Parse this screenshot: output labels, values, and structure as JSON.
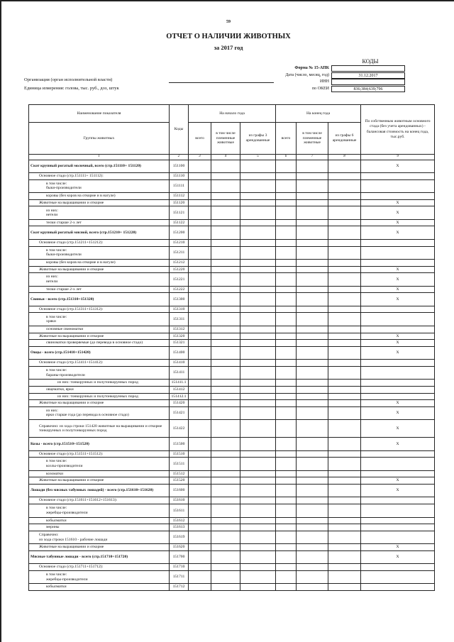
{
  "page_number": "59",
  "title": "ОТЧЕТ О НАЛИЧИИ ЖИВОТНЫХ",
  "subtitle": "за 2017 год",
  "codes_block": {
    "heading": "КОДЫ",
    "rows": [
      {
        "label": "Форма № 15-АПК",
        "value": ""
      },
      {
        "label": "Дата (число, месяц, год)",
        "value": "31.12.2017"
      },
      {
        "label": "ИНН",
        "value": ""
      },
      {
        "label": "по ОКЕИ",
        "value": "836;384;639;796"
      }
    ]
  },
  "organization_label": "Организация (орган исполнительной власти)",
  "unit_label": "Единица измерения: голова, тыс. руб., доз, штук",
  "table": {
    "h_name": "Наименование показателя",
    "h_group": "Группы животных",
    "h_codes": "Коды",
    "h_start": "На начало года",
    "h_end": "На конец года",
    "h_total": "всего",
    "h_breed": "в том числе племенные животные",
    "h_rent3": "из графы 3 арендованные",
    "h_rent6": "из графы 6 арендованные",
    "h_col9": "По собственным животным основного стада (без учета арендованных) - балансовая стоимость на конец года, тыс.руб.",
    "col_numbers": [
      "1",
      "2",
      "3",
      "4",
      "5",
      "6",
      "7",
      "8",
      "9"
    ],
    "rows": [
      {
        "name": "Скот крупный рогатый молочный, всего (стр.151110+ 151120)",
        "code": "151100",
        "level": 0,
        "x": "X"
      },
      {
        "name": "Основное стадо (стр.151111+ 151112):",
        "code": "151110",
        "level": 1,
        "x": ""
      },
      {
        "name": "в том числе:\nбыки-производители",
        "code": "151111",
        "level": 2,
        "x": ""
      },
      {
        "name": "коровы (без коров на откорме и в нагуле)",
        "code": "151112",
        "level": 2,
        "x": ""
      },
      {
        "name": "Животные на выращивании и откорме",
        "code": "151120",
        "level": 1,
        "x": "X"
      },
      {
        "name": "из них:\nнетели",
        "code": "151121",
        "level": 2,
        "x": "X"
      },
      {
        "name": "телки старше 2-х лет",
        "code": "151122",
        "level": 2,
        "x": "X"
      },
      {
        "name": "Скот крупный рогатый мясной, всего (стр.151210+ 151220)",
        "code": "151200",
        "level": 0,
        "x": "X"
      },
      {
        "name": "Основное стадо (стр.151211+151212):",
        "code": "151210",
        "level": 1,
        "x": ""
      },
      {
        "name": "в том числе:\nбыки-производители",
        "code": "151211",
        "level": 2,
        "x": ""
      },
      {
        "name": "коровы (без коров на откорме и в нагуле)",
        "code": "151212",
        "level": 2,
        "x": ""
      },
      {
        "name": "Животные на выращивании и откорме",
        "code": "151220",
        "level": 1,
        "x": "X"
      },
      {
        "name": "из них:\nнетели",
        "code": "151221",
        "level": 2,
        "x": "X"
      },
      {
        "name": "телки старше 2-х лет",
        "code": "151222",
        "level": 2,
        "x": "X"
      },
      {
        "name": "Свиньи - всего (стр.151310+151320)",
        "code": "151300",
        "level": 0,
        "x": "X"
      },
      {
        "name": "Основное стадо (стр.151311+151312):",
        "code": "151310",
        "level": 1,
        "x": ""
      },
      {
        "name": "в том числе:\nхряки",
        "code": "151311",
        "level": 2,
        "x": ""
      },
      {
        "name": "основные свиноматки",
        "code": "151312",
        "level": 2,
        "x": ""
      },
      {
        "name": "Животные на выращивании и откорме",
        "code": "151320",
        "level": 1,
        "x": "X"
      },
      {
        "name": "свиноматки проверяемые (до перевода в основное стадо)",
        "code": "151321",
        "level": 2,
        "x": "X"
      },
      {
        "name": "Овцы - всего (стр.151410+151420)",
        "code": "151400",
        "level": 0,
        "x": "X"
      },
      {
        "name": "Основное стадо (стр.151411+151412):",
        "code": "151410",
        "level": 1,
        "x": ""
      },
      {
        "name": "в том числе:\nбараны-производители",
        "code": "151411",
        "level": 2,
        "x": ""
      },
      {
        "name": "из них: тонкорунных и полутонкорунных пород",
        "code": "151411.1",
        "level": 3,
        "x": ""
      },
      {
        "name": "овцематки, ярки",
        "code": "151412",
        "level": 2,
        "x": ""
      },
      {
        "name": "из них: тонкорунных и полутонкорунных пород",
        "code": "151412.1",
        "level": 3,
        "x": ""
      },
      {
        "name": "Животные на выращивании и откорме",
        "code": "151420",
        "level": 1,
        "x": "X"
      },
      {
        "name": "из них:\nярки старше года (до перевода в основное стадо)",
        "code": "151421",
        "level": 2,
        "x": "X"
      },
      {
        "name": "Справочно: из хода строки 151420 животные на выращивании и откорме тонкорунных и полутонкорунных пород",
        "code": "151422",
        "level": 1,
        "x": "X"
      },
      {
        "name": "Козы - всего (стр.151510+151520)",
        "code": "151500",
        "level": 0,
        "x": "X"
      },
      {
        "name": "Основное стадо (стр.151511+151512):",
        "code": "151510",
        "level": 1,
        "x": ""
      },
      {
        "name": "в том числе:\nкозлы-производители",
        "code": "151511",
        "level": 2,
        "x": ""
      },
      {
        "name": "козоматки",
        "code": "151512",
        "level": 2,
        "x": ""
      },
      {
        "name": "Животные на выращивании и откорме",
        "code": "151520",
        "level": 1,
        "x": "X"
      },
      {
        "name": "Лошади (без мясных табунных лошадей) - всего (стр.151610+151620)",
        "code": "151600",
        "level": 0,
        "x": "X"
      },
      {
        "name": "Основное стадо (стр.151611+151612+151613):",
        "code": "151610",
        "level": 1,
        "x": ""
      },
      {
        "name": "в том числе:\nжеребцы-производители",
        "code": "151611",
        "level": 2,
        "x": ""
      },
      {
        "name": "кобылматки",
        "code": "151612",
        "level": 2,
        "x": ""
      },
      {
        "name": "мерины",
        "code": "151613",
        "level": 2,
        "x": ""
      },
      {
        "name": "Справочно:\nиз хода строки 151610 - рабочие лошади",
        "code": "151619",
        "level": 1,
        "x": ""
      },
      {
        "name": "Животные на выращивании и откорме",
        "code": "151620",
        "level": 1,
        "x": "X"
      },
      {
        "name": "Мясные табунные лошади - всего (стр.151710+151720)",
        "code": "151700",
        "level": 0,
        "x": "X"
      },
      {
        "name": "Основное стадо (стр.151711+151712):",
        "code": "151710",
        "level": 1,
        "x": ""
      },
      {
        "name": "в том числе:\nжеребцы-производители",
        "code": "151711",
        "level": 2,
        "x": ""
      },
      {
        "name": "кобылматки",
        "code": "151712",
        "level": 2,
        "x": ""
      }
    ]
  }
}
